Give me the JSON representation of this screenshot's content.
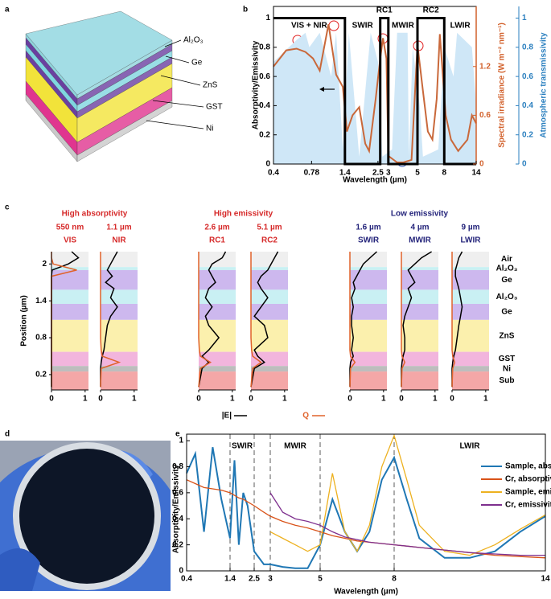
{
  "panel_labels": [
    "a",
    "b",
    "c",
    "d",
    "e"
  ],
  "stack_labels": [
    "Al₂O₃",
    "Ge",
    "ZnS",
    "GST",
    "Ni"
  ],
  "chart_data": [
    {
      "type": "line",
      "x_label": "Wavelength (µm)",
      "y_label": "Absorptivity/Emissivity",
      "y2_label": "Spectral irradiance (W m⁻² nm⁻¹)",
      "y3_label": "Atmospheric transmissivity",
      "xscale": "log",
      "xlim": [
        0.4,
        14
      ],
      "xticks": [
        0.4,
        0.78,
        1.4,
        2.5,
        3,
        5,
        8,
        14
      ],
      "ylim": [
        0,
        1.08
      ],
      "yticks": [
        0,
        0.2,
        0.4,
        0.6,
        0.8,
        1
      ],
      "y2lim": [
        0,
        1.94
      ],
      "y2ticks": [
        0,
        0.6,
        1.2
      ],
      "y3lim": [
        0,
        1.08
      ],
      "y3ticks": [
        0,
        0.2,
        0.4,
        0.6,
        0.8,
        1
      ],
      "y2color": "#d2612c",
      "y3color": "#2a7fbf",
      "bands": [
        {
          "label": "VIS + NIR",
          "range": [
            0.4,
            1.4
          ]
        },
        {
          "label": "SWIR",
          "range": [
            1.4,
            2.6
          ]
        },
        {
          "label": "RC1",
          "range": [
            2.6,
            3
          ]
        },
        {
          "label": "MWIR",
          "range": [
            3,
            5
          ]
        },
        {
          "label": "RC2",
          "range": [
            5,
            8
          ]
        },
        {
          "label": "LWIR",
          "range": [
            8,
            14
          ]
        }
      ],
      "series": [
        {
          "axis": "y3",
          "area": true,
          "color": "#cfe7f7",
          "x": [
            0.4,
            0.6,
            0.7,
            0.75,
            0.9,
            1.1,
            1.2,
            1.35,
            1.5,
            1.8,
            2.0,
            2.2,
            2.5,
            2.7,
            3.2,
            3.5,
            4.2,
            4.3,
            4.6,
            5.2,
            5.5,
            7.2,
            8,
            9.4,
            10,
            13,
            14
          ],
          "values": [
            0.7,
            0.85,
            0.9,
            0.8,
            0.9,
            0.6,
            0.9,
            0.1,
            0.9,
            0.05,
            0.5,
            0.9,
            0.7,
            0.05,
            0.1,
            0.9,
            0.9,
            0.05,
            0.8,
            0.4,
            0.05,
            0.1,
            0.8,
            0.6,
            0.9,
            0.8,
            0.4
          ]
        },
        {
          "axis": "y2",
          "color": "#c9683a",
          "x": [
            0.4,
            0.5,
            0.6,
            0.7,
            0.8,
            0.9,
            1.05,
            1.2,
            1.35,
            1.45,
            1.6,
            1.8,
            2.0,
            2.14,
            2.4,
            2.6,
            2.73,
            2.9,
            3.0,
            3.5,
            3.9,
            4.5,
            4.9,
            5.0,
            5.5,
            6,
            6.5,
            7,
            7.4,
            8.2,
            9,
            10.2,
            12,
            13,
            14
          ],
          "values": [
            1.2,
            1.4,
            1.42,
            1.38,
            1.3,
            1.15,
            1.72,
            1.1,
            0.95,
            0.4,
            0.6,
            0.7,
            0.25,
            0.16,
            0.8,
            1.3,
            1.55,
            1.3,
            0.1,
            0.02,
            0.02,
            0.05,
            1.2,
            1.47,
            0.9,
            0.4,
            0.3,
            0.8,
            1.6,
            0.6,
            0.3,
            0.16,
            0.3,
            0.6,
            0.5
          ]
        },
        {
          "axis": "y",
          "color": "#000000",
          "x": [
            0.4,
            1.4,
            1.4,
            2.6,
            2.6,
            3,
            3,
            5,
            5,
            8,
            8,
            14
          ],
          "values": [
            1,
            1,
            0,
            0,
            1,
            1,
            0,
            0,
            1,
            1,
            0,
            0
          ]
        }
      ]
    },
    {
      "type": "profile",
      "y_label": "Position (µm)",
      "ylim": [
        -0.05,
        2.2
      ],
      "yticks": [
        0.2,
        0.8,
        1.4,
        2
      ],
      "xlim": [
        0,
        1.1
      ],
      "xticks": [
        0,
        1
      ],
      "legend": [
        {
          "name": "|E|",
          "color": "#000000"
        },
        {
          "name": "Q",
          "color": "#e0622a"
        }
      ],
      "layers": [
        {
          "name": "Air",
          "range": [
            1.95,
            2.2
          ],
          "color": "#efefef"
        },
        {
          "name": "Al₂O₃",
          "range": [
            1.9,
            1.95
          ],
          "color": "#c9f0f3"
        },
        {
          "name": "Ge",
          "range": [
            1.58,
            1.9
          ],
          "color": "#cdb8ee"
        },
        {
          "name": "Al₂O₃",
          "range": [
            1.35,
            1.58
          ],
          "color": "#c9f0f3"
        },
        {
          "name": "Ge",
          "range": [
            1.09,
            1.35
          ],
          "color": "#cdb8ee"
        },
        {
          "name": "ZnS",
          "range": [
            0.57,
            1.09
          ],
          "color": "#fbf0ad"
        },
        {
          "name": "GST",
          "range": [
            0.34,
            0.57
          ],
          "color": "#f2b5dd"
        },
        {
          "name": "Ni",
          "range": [
            0.25,
            0.34
          ],
          "color": "#bdbdbd"
        },
        {
          "name": "Sub",
          "range": [
            -0.05,
            0.25
          ],
          "color": "#f4a7a7"
        }
      ],
      "positions": [
        0,
        0.3,
        0.4,
        0.5,
        0.6,
        0.8,
        1.0,
        1.15,
        1.3,
        1.45,
        1.6,
        1.7,
        1.8,
        1.9,
        2.0,
        2.1,
        2.2
      ],
      "groups": [
        {
          "title": "High absorptivity",
          "color": "#d62a2a",
          "panels": [
            {
              "wavelength": "550 nm",
              "band": "VIS",
              "E": [
                0,
                0,
                0,
                0,
                0,
                0,
                0,
                0,
                0,
                0,
                0,
                0,
                0,
                0.02,
                0.5,
                0.8,
                0.6
              ],
              "Q": [
                0,
                0,
                0,
                0,
                0,
                0,
                0,
                0,
                0,
                0,
                0,
                0,
                0,
                0.75,
                0.05,
                0,
                0
              ]
            },
            {
              "wavelength": "1.1 µm",
              "band": "NIR",
              "E": [
                0,
                0,
                0.02,
                0.05,
                0.1,
                0.15,
                0.2,
                0.3,
                0.5,
                0.3,
                0.4,
                0.15,
                0.35,
                0.2,
                0.3,
                0.4,
                0.5
              ],
              "Q": [
                0,
                0.02,
                0.55,
                0.05,
                0.02,
                0,
                0,
                0,
                0,
                0,
                0,
                0,
                0,
                0,
                0,
                0,
                0
              ]
            }
          ]
        },
        {
          "title": "High emissivity",
          "color": "#d62a2a",
          "panels": [
            {
              "wavelength": "2.6 µm",
              "band": "RC1",
              "E": [
                0,
                0.1,
                0.3,
                0.1,
                0.3,
                0.6,
                0.3,
                0.2,
                0.4,
                0.2,
                0.3,
                0.5,
                0.4,
                0.3,
                0.4,
                0.7,
                0.8
              ],
              "Q": [
                0,
                0.05,
                0.35,
                0.05,
                0.02,
                0,
                0,
                0,
                0,
                0,
                0,
                0,
                0,
                0,
                0,
                0,
                0
              ]
            },
            {
              "wavelength": "5.1 µm",
              "band": "RC2",
              "E": [
                0,
                0.1,
                0.4,
                0.2,
                0.1,
                0.5,
                0.4,
                0.1,
                0.3,
                0.5,
                0.3,
                0.2,
                0.3,
                0.5,
                0.6,
                0.7,
                0.8
              ],
              "Q": [
                0,
                0.05,
                0.3,
                0.05,
                0.02,
                0,
                0,
                0,
                0,
                0,
                0,
                0,
                0,
                0,
                0,
                0,
                0
              ]
            }
          ]
        },
        {
          "title": "Low emissivity",
          "color": "#23237a",
          "panels": [
            {
              "wavelength": "1.6 µm",
              "band": "SWIR",
              "E": [
                0,
                0,
                0.02,
                0.1,
                0.05,
                0.1,
                0.05,
                0.05,
                0.1,
                0.05,
                0.15,
                0.1,
                0.2,
                0.3,
                0.4,
                0.6,
                0.8
              ],
              "Q": [
                0,
                0.02,
                0.15,
                0.02,
                0,
                0,
                0,
                0,
                0,
                0,
                0,
                0,
                0,
                0,
                0,
                0,
                0
              ]
            },
            {
              "wavelength": "4 µm",
              "band": "MWIR",
              "E": [
                0,
                0,
                0.02,
                0.05,
                0.1,
                0.1,
                0.05,
                0.1,
                0.2,
                0.3,
                0.2,
                0.4,
                0.3,
                0.2,
                0.4,
                0.6,
                0.9
              ],
              "Q": [
                0,
                0.02,
                0.1,
                0.02,
                0,
                0,
                0,
                0,
                0,
                0,
                0,
                0,
                0,
                0,
                0,
                0,
                0
              ]
            },
            {
              "wavelength": "9 µm",
              "band": "LWIR",
              "E": [
                0,
                0,
                0.02,
                0.05,
                0.1,
                0.15,
                0.2,
                0.25,
                0.3,
                0.25,
                0.2,
                0.15,
                0.1,
                0.1,
                0.15,
                0.2,
                0.3
              ],
              "Q": [
                0,
                0.02,
                0.08,
                0.02,
                0,
                0,
                0,
                0,
                0,
                0,
                0,
                0,
                0,
                0,
                0,
                0,
                0
              ]
            }
          ]
        }
      ]
    },
    {
      "type": "line",
      "x_label": "Wavelength (µm)",
      "y_label": "Absorptivity/Emissivity",
      "xlim": [
        0.4,
        14
      ],
      "xticks": [
        0.4,
        1.4,
        2.5,
        3,
        5,
        8,
        14
      ],
      "ylim": [
        0,
        1.05
      ],
      "yticks": [
        0,
        0.2,
        0.4,
        0.6,
        0.8,
        1
      ],
      "vlines": [
        1.4,
        2.5,
        3,
        5,
        8
      ],
      "regions": [
        {
          "label": "SWIR",
          "range": [
            1.4,
            2.5
          ]
        },
        {
          "label": "MWIR",
          "range": [
            3,
            5
          ]
        },
        {
          "label": "LWIR",
          "range": [
            8,
            14
          ]
        }
      ],
      "x": [
        0.4,
        0.6,
        0.8,
        1.0,
        1.2,
        1.4,
        1.6,
        1.8,
        2.0,
        2.2,
        2.5,
        2.8,
        3.0,
        3.5,
        4.0,
        4.5,
        5.0,
        5.5,
        6.0,
        6.5,
        7.0,
        7.5,
        8.0,
        8.5,
        9,
        10,
        11,
        12,
        13,
        14
      ],
      "series": [
        {
          "name": "Sample, absorptivity",
          "color": "#1f77b4",
          "values": [
            0.75,
            0.9,
            0.3,
            0.95,
            0.55,
            0.25,
            0.85,
            0.2,
            0.6,
            0.5,
            0.15,
            0.05,
            0.05,
            0.03,
            0.02,
            0.02,
            0.2,
            0.55,
            0.3,
            0.15,
            0.3,
            0.7,
            0.87,
            0.55,
            0.25,
            0.1,
            0.1,
            0.15,
            0.3,
            0.42
          ]
        },
        {
          "name": "Cr, absorptivity",
          "color": "#d95319",
          "values": [
            0.7,
            0.67,
            0.64,
            0.63,
            0.62,
            0.6,
            0.58,
            0.56,
            0.55,
            0.53,
            0.5,
            0.45,
            0.42,
            0.38,
            0.35,
            0.33,
            0.3,
            0.27,
            0.25,
            0.23,
            0.22,
            0.21,
            0.2,
            0.19,
            0.18,
            0.16,
            0.14,
            0.12,
            0.11,
            0.1
          ]
        },
        {
          "name": "Sample, emissivity",
          "color": "#edb120",
          "values": [
            null,
            null,
            null,
            null,
            null,
            null,
            null,
            null,
            null,
            null,
            null,
            null,
            0.3,
            0.25,
            0.2,
            0.15,
            0.2,
            0.75,
            0.3,
            0.15,
            0.35,
            0.8,
            1.04,
            0.7,
            0.35,
            0.15,
            0.12,
            0.2,
            0.32,
            0.43
          ]
        },
        {
          "name": "Cr, emissivity",
          "color": "#7e2f8e",
          "values": [
            null,
            null,
            null,
            null,
            null,
            null,
            null,
            null,
            null,
            null,
            null,
            null,
            0.6,
            0.45,
            0.4,
            0.38,
            0.35,
            0.3,
            0.26,
            0.24,
            0.22,
            0.21,
            0.2,
            0.19,
            0.18,
            0.16,
            0.14,
            0.13,
            0.12,
            0.12
          ]
        }
      ]
    }
  ]
}
